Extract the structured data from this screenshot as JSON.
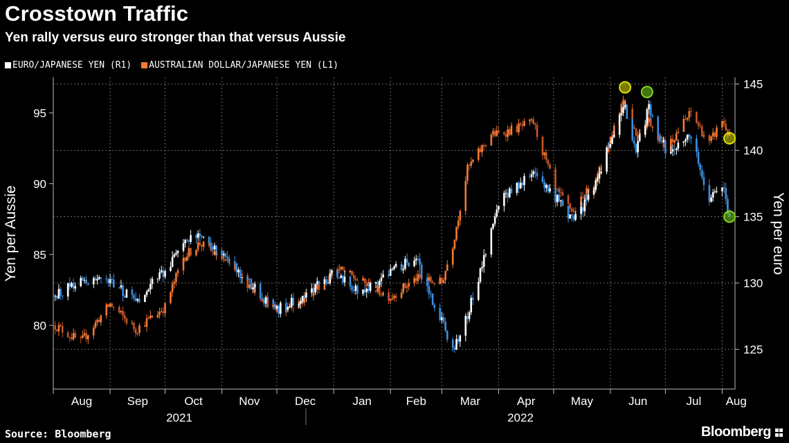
{
  "header": {
    "title": "Crosstown Traffic",
    "subtitle": "Yen rally versus euro stronger than that versus Aussie"
  },
  "legend": [
    {
      "label": "EURO/JAPANESE YEN (R1)",
      "color": "#ffffff"
    },
    {
      "label": "AUSTRALIAN DOLLAR/JAPANESE YEN (L1)",
      "color": "#f47a35"
    }
  ],
  "footer": {
    "source": "Source: Bloomberg",
    "brand": "Bloomberg"
  },
  "chart_data": {
    "type": "line",
    "title": "Crosstown Traffic",
    "subtitle": "Yen rally versus euro stronger than that versus Aussie",
    "ylabel_left": "Yen per Aussie",
    "ylabel_right": "Yen per euro",
    "ylim_left": [
      75.5,
      97.5
    ],
    "ylim_right": [
      122,
      145.5
    ],
    "yticks_left": [
      80,
      85,
      90,
      95
    ],
    "yticks_right": [
      125,
      130,
      135,
      140,
      145
    ],
    "xticks": [
      "Aug",
      "Sep",
      "Oct",
      "Nov",
      "Dec",
      "Jan",
      "Feb",
      "Mar",
      "Apr",
      "May",
      "Jun",
      "Jul",
      "Aug"
    ],
    "year_labels": [
      "2021",
      "2022"
    ],
    "grid": true,
    "up_color": "#ffffff",
    "down_color": "#3d8fe0",
    "series": [
      {
        "name": "EURO/JAPANESE YEN (R1)",
        "axis": "right",
        "color": "#ffffff",
        "x": [
          "2021-08-02",
          "2021-08-16",
          "2021-09-01",
          "2021-09-15",
          "2021-10-01",
          "2021-10-11",
          "2021-10-20",
          "2021-11-01",
          "2021-11-15",
          "2021-12-01",
          "2021-12-15",
          "2022-01-03",
          "2022-01-17",
          "2022-02-01",
          "2022-02-15",
          "2022-03-01",
          "2022-03-07",
          "2022-03-15",
          "2022-03-28",
          "2022-04-01",
          "2022-04-20",
          "2022-05-02",
          "2022-05-12",
          "2022-05-25",
          "2022-06-08",
          "2022-06-15",
          "2022-06-22",
          "2022-07-01",
          "2022-07-15",
          "2022-07-25",
          "2022-08-01",
          "2022-08-05"
        ],
        "values": [
          129,
          130.3,
          130,
          128.6,
          131,
          133,
          133.5,
          132.3,
          130,
          128,
          129,
          130.8,
          129.2,
          131,
          131.8,
          127,
          125,
          127.5,
          134,
          136.2,
          138.5,
          136.5,
          134.5,
          138,
          143.5,
          140,
          143.2,
          140,
          141,
          136,
          137.5,
          135
        ]
      },
      {
        "name": "AUSTRALIAN DOLLAR/JAPANESE YEN (L1)",
        "axis": "left",
        "color": "#f47a35",
        "x": [
          "2021-08-02",
          "2021-08-16",
          "2021-09-01",
          "2021-09-15",
          "2021-10-01",
          "2021-10-11",
          "2021-10-20",
          "2021-11-01",
          "2021-11-15",
          "2021-12-01",
          "2021-12-15",
          "2022-01-03",
          "2022-01-17",
          "2022-02-01",
          "2022-02-15",
          "2022-03-01",
          "2022-03-07",
          "2022-03-15",
          "2022-03-28",
          "2022-04-01",
          "2022-04-20",
          "2022-05-02",
          "2022-05-12",
          "2022-05-25",
          "2022-06-08",
          "2022-06-15",
          "2022-06-22",
          "2022-07-01",
          "2022-07-15",
          "2022-07-25",
          "2022-08-01",
          "2022-08-05"
        ],
        "values": [
          80,
          78.8,
          81.5,
          79.7,
          81.3,
          84.8,
          85.8,
          84.7,
          83,
          81,
          81.8,
          84,
          83,
          82,
          83.3,
          83,
          85.7,
          91,
          93.5,
          93.5,
          94.3,
          89.5,
          88,
          90.5,
          96,
          93.5,
          94.5,
          92.5,
          95,
          92.8,
          94.5,
          93.3
        ]
      }
    ],
    "markers": [
      {
        "series": "AUSTRALIAN DOLLAR/JAPANESE YEN (L1)",
        "x": "2022-06-09",
        "y": 96.8,
        "color": "#e0e000"
      },
      {
        "series": "EURO/JAPANESE YEN (R1)",
        "x": "2022-06-21",
        "y": 144.4,
        "color": "#7ed321"
      },
      {
        "series": "AUSTRALIAN DOLLAR/JAPANESE YEN (L1)",
        "x": "2022-08-05",
        "y": 93.2,
        "color": "#e0e000"
      },
      {
        "series": "EURO/JAPANESE YEN (R1)",
        "x": "2022-08-05",
        "y": 135,
        "color": "#7ed321"
      }
    ]
  }
}
